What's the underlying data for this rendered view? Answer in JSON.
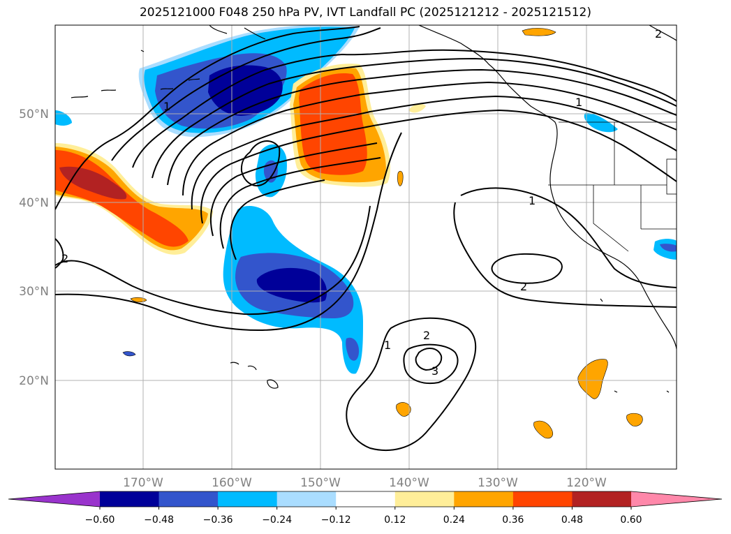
{
  "title": "2025121000 F048 250 hPa PV, IVT Landfall PC (2025121212 - 2025121512)",
  "lat_labels": [
    "50°N",
    "40°N",
    "30°N",
    "20°N"
  ],
  "lon_labels": [
    "170°W",
    "160°W",
    "150°W",
    "140°W",
    "130°W",
    "120°W"
  ],
  "colorbar": {
    "tick_labels": [
      "−0.60",
      "−0.48",
      "−0.36",
      "−0.24",
      "−0.12",
      "0.12",
      "0.24",
      "0.36",
      "0.48",
      "0.60"
    ],
    "colors": [
      "#9933cc",
      "#000099",
      "#3355cc",
      "#00bbff",
      "#aaddff",
      "#ffffff",
      "#ffee99",
      "#ffa500",
      "#ff4500",
      "#b22222",
      "#ff88aa"
    ]
  },
  "pv_contour_labels": {
    "one": "1",
    "two": "2",
    "three": "3"
  },
  "colors": {
    "grid": "#b0b0b0",
    "coast": "#000000",
    "contour": "#000000"
  }
}
